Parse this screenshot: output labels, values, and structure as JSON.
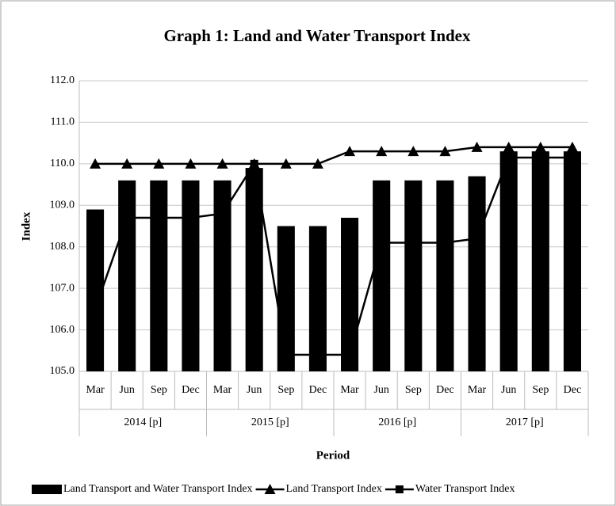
{
  "chart_data": {
    "type": "combo",
    "title": "Graph 1: Land and Water Transport Index",
    "y_label": "Index",
    "x_label": "Period",
    "categories": [
      "Mar",
      "Jun",
      "Sep",
      "Dec",
      "Mar",
      "Jun",
      "Sep",
      "Dec",
      "Mar",
      "Jun",
      "Sep",
      "Dec",
      "Mar",
      "Jun",
      "Sep",
      "Dec"
    ],
    "groups": [
      "2014 [p]",
      "2015 [p]",
      "2016 [p]",
      "2017 [p]"
    ],
    "series": [
      {
        "name": "Land Transport and Water Transport Index",
        "type": "bar",
        "color": "#000000",
        "values": [
          108.9,
          109.6,
          109.6,
          109.6,
          109.6,
          109.9,
          108.5,
          108.5,
          108.7,
          109.6,
          109.6,
          109.6,
          109.7,
          110.3,
          110.3,
          110.3
        ]
      },
      {
        "name": "Land Transport Index",
        "type": "line",
        "marker": "triangle",
        "color": "#000000",
        "values": [
          110.0,
          110.0,
          110.0,
          110.0,
          110.0,
          110.0,
          110.0,
          110.0,
          110.3,
          110.3,
          110.3,
          110.3,
          110.4,
          110.4,
          110.4,
          110.4
        ]
      },
      {
        "name": "Water Transport Index",
        "type": "line",
        "marker": "square",
        "color": "#000000",
        "values": [
          106.5,
          108.7,
          108.7,
          108.7,
          108.8,
          110.0,
          105.4,
          105.4,
          105.4,
          108.1,
          108.1,
          108.1,
          108.2,
          110.15,
          110.15,
          110.15
        ]
      }
    ],
    "ylim": [
      105,
      112
    ],
    "yticks": [
      {
        "value": 105,
        "label": "105.0"
      },
      {
        "value": 106,
        "label": "106.0"
      },
      {
        "value": 107,
        "label": "107.0"
      },
      {
        "value": 108,
        "label": "108.0"
      },
      {
        "value": 109,
        "label": "109.0"
      },
      {
        "value": 110,
        "label": "110.0"
      },
      {
        "value": 111,
        "label": "111.0"
      },
      {
        "value": 112,
        "label": "112.0"
      }
    ],
    "grid": true
  }
}
